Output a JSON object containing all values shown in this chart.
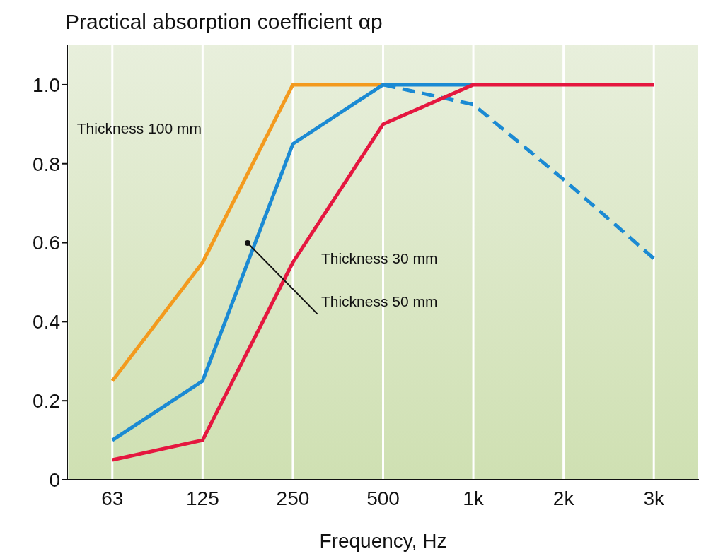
{
  "chart_data": {
    "type": "line",
    "title": "Practical absorption coefficient αp",
    "xlabel": "Frequency, Hz",
    "categories": [
      "63",
      "125",
      "250",
      "500",
      "1k",
      "2k",
      "3k"
    ],
    "series": [
      {
        "color": "#f39a1e",
        "values": [
          0.25,
          0.55,
          1.0,
          1.0,
          null,
          null,
          null
        ]
      },
      {
        "color": "#1b8ad3",
        "values": [
          0.1,
          0.25,
          0.85,
          1.0,
          1.0,
          null,
          null
        ]
      },
      {
        "color": "#1b8ad3",
        "line_style": "dashed",
        "values": [
          null,
          null,
          null,
          1.0,
          0.95,
          0.76,
          0.56
        ]
      },
      {
        "color": "#e5173f",
        "values": [
          0.05,
          0.1,
          0.55,
          0.9,
          1.0,
          1.0,
          1.0
        ]
      }
    ],
    "ylim": [
      0,
      1.1
    ],
    "yticks": [
      0,
      0.2,
      0.4,
      0.6,
      0.8,
      {
        "value": 1.0,
        "label": "1.0"
      }
    ],
    "grid": "x",
    "marker": "none",
    "line_style": "solid",
    "annotations": [
      "Thickness 100 mm",
      "Thickness 30 mm",
      "Thickness 50 mm"
    ]
  }
}
